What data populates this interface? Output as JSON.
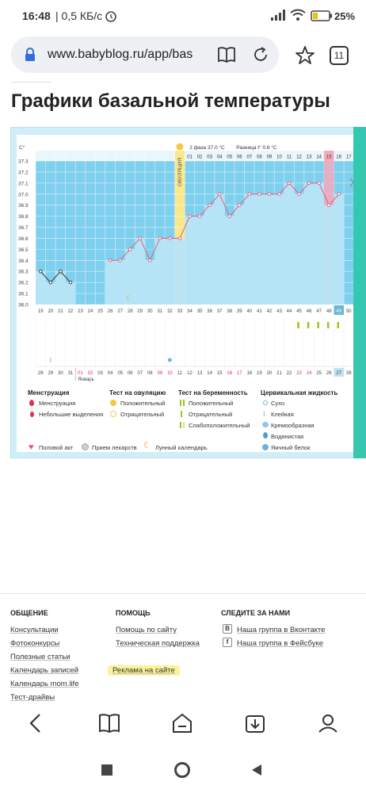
{
  "status_bar": {
    "time": "16:48",
    "network": "| 0,5 КБ/с",
    "battery": "25%"
  },
  "browser": {
    "url": "www.babyblog.ru/app/bas",
    "tab_count": "11"
  },
  "page": {
    "title": "Графики базальной температуры"
  },
  "chart_data": {
    "type": "line",
    "ylabel": "C°",
    "y_ticks": [
      "37.3",
      "37.2",
      "37.1",
      "37.0",
      "36.9",
      "36.8",
      "36.7",
      "36.6",
      "36.5",
      "36.4",
      "36.3",
      "36.2",
      "36.1",
      "36.0"
    ],
    "ylim": [
      36.0,
      37.3
    ],
    "header": {
      "phase": "2 фаза 37.0 °C",
      "diff": "Разница t° 0.6 °C",
      "ovulation_label": "ОВУЛЯЦИЯ"
    },
    "top_cycle_days": [
      "01",
      "02",
      "03",
      "04",
      "05",
      "06",
      "07",
      "08",
      "09",
      "10",
      "11",
      "12",
      "13",
      "14",
      "15",
      "16",
      "17"
    ],
    "x_days": [
      "19",
      "20",
      "21",
      "22",
      "23",
      "24",
      "25",
      "26",
      "27",
      "28",
      "29",
      "30",
      "31",
      "32",
      "33",
      "34",
      "35",
      "36",
      "37",
      "38",
      "39",
      "40",
      "41",
      "42",
      "43",
      "44",
      "45",
      "46",
      "47",
      "48",
      "49",
      "50"
    ],
    "values": [
      36.3,
      36.2,
      36.3,
      36.2,
      null,
      null,
      null,
      36.4,
      36.4,
      36.5,
      36.6,
      36.4,
      36.6,
      36.6,
      36.6,
      36.8,
      36.8,
      36.9,
      37.0,
      36.8,
      36.9,
      37.0,
      37.0,
      37.0,
      37.0,
      37.1,
      37.0,
      37.1,
      37.1,
      36.9,
      37.0,
      null
    ],
    "date_labels": [
      "28",
      "29",
      "30",
      "31",
      "01",
      "02",
      "03",
      "04",
      "05",
      "06",
      "07",
      "08",
      "09",
      "10",
      "11",
      "12",
      "13",
      "14",
      "15",
      "16",
      "17",
      "18",
      "19",
      "20",
      "21",
      "22",
      "23",
      "24",
      "25",
      "26",
      "27",
      "28"
    ],
    "date_month": "Январь",
    "marks": {
      "heart_days": [
        "30",
        "31",
        "06",
        "07",
        "09"
      ],
      "drop_day": "09",
      "moon_day": "28",
      "tests": "26"
    }
  },
  "legend": {
    "menstruation": {
      "title": "Менструация",
      "items": [
        "Менструация",
        "Небольшие выделения"
      ]
    },
    "ovulation_test": {
      "title": "Тест на овуляцию",
      "items": [
        "Положительный",
        "Отрицательный"
      ]
    },
    "pregnancy_test": {
      "title": "Тест на беременность",
      "items": [
        "Положительный",
        "Отрицательный",
        "Слабоположительный"
      ]
    },
    "cervical": {
      "title": "Цервикальная жидкость",
      "items": [
        "Сухо",
        "Клейкая",
        "Кремообразная",
        "Водянистая",
        "Яичный белок"
      ]
    },
    "bottom": [
      "Половой акт",
      "Прием лекарств",
      "Лунный календарь"
    ]
  },
  "footer": {
    "col1": {
      "title": "ОБЩЕНИЕ",
      "links": [
        "Консультации",
        "Фотоконкурсы",
        "Полезные статьи",
        "Календарь записей",
        "Календарь mom.life",
        "Тест-драйвы"
      ]
    },
    "col2": {
      "title": "ПОМОЩЬ",
      "links": [
        "Помощь по сайту",
        "Техническая поддержка",
        "Реклама на сайте"
      ]
    },
    "col3": {
      "title": "СЛЕДИТЕ ЗА НАМИ",
      "links": [
        "Наша группа в Вконтакте",
        "Наша группа в Фейсбуке"
      ]
    }
  },
  "colors": {
    "accent_teal": "#36c7b0",
    "chart_blue": "#7fd0ef",
    "ovulation_yellow": "#fbe88a",
    "line_pink": "#e0607e"
  }
}
